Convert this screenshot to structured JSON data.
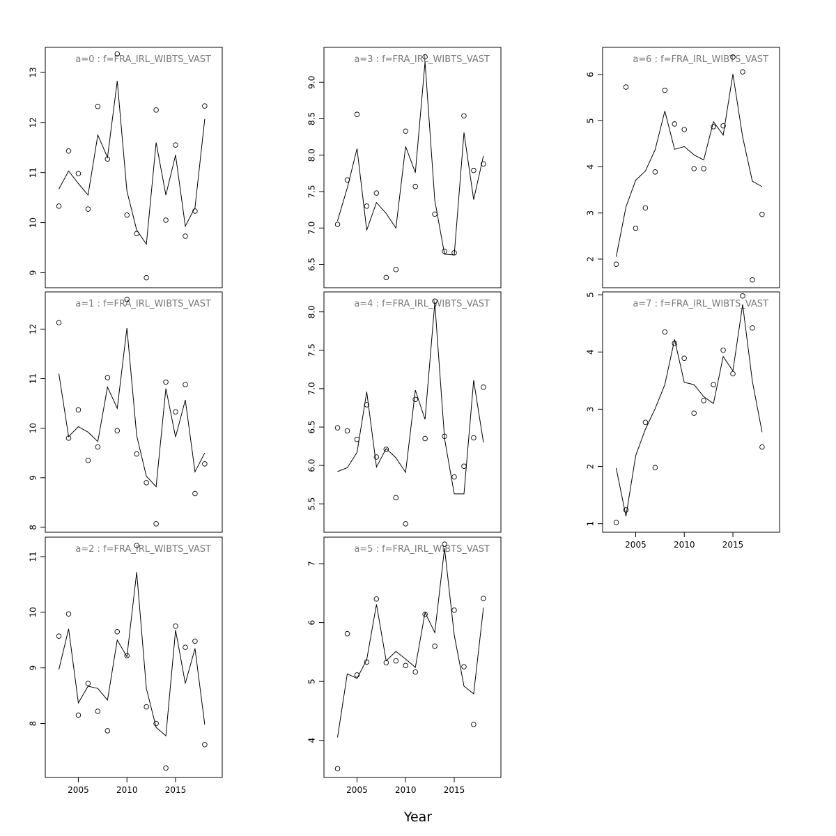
{
  "chart_data": {
    "type": "scatter",
    "xlabel": "Year",
    "years": [
      2003,
      2004,
      2005,
      2006,
      2007,
      2008,
      2009,
      2010,
      2011,
      2012,
      2013,
      2014,
      2015,
      2016,
      2017,
      2018
    ],
    "xlim": [
      2001.6,
      2019.8
    ],
    "x_ticks": [
      "2005",
      "2010",
      "2015"
    ],
    "panels": [
      {
        "title": "a=0 : f=FRA_IRL_WIBTS_VAST",
        "ylim": [
          8.7,
          13.5
        ],
        "y_ticks": [
          "9",
          "10",
          "11",
          "12",
          "13"
        ],
        "observed": [
          10.33,
          11.43,
          10.98,
          10.27,
          12.32,
          11.27,
          13.37,
          10.15,
          9.78,
          8.9,
          12.25,
          10.05,
          11.55,
          9.73,
          10.23,
          12.33
        ],
        "fitted": [
          10.67,
          11.03,
          10.78,
          10.55,
          11.75,
          11.3,
          12.83,
          10.63,
          9.85,
          9.57,
          11.6,
          10.55,
          11.35,
          9.93,
          10.3,
          12.07
        ]
      },
      {
        "title": "a=1 : f=FRA_IRL_WIBTS_VAST",
        "ylim": [
          7.9,
          12.75
        ],
        "y_ticks": [
          "8",
          "9",
          "10",
          "11",
          "12"
        ],
        "observed": [
          12.13,
          9.8,
          10.37,
          9.35,
          9.62,
          11.02,
          9.95,
          12.6,
          9.48,
          8.9,
          8.07,
          10.93,
          10.33,
          10.88,
          8.68,
          9.28
        ],
        "fitted": [
          11.1,
          9.83,
          10.03,
          9.92,
          9.73,
          10.83,
          10.4,
          12.02,
          9.85,
          9.03,
          8.82,
          10.8,
          9.82,
          10.57,
          9.12,
          9.5
        ]
      },
      {
        "title": "a=2 : f=FRA_IRL_WIBTS_VAST",
        "ylim": [
          7.03,
          11.35
        ],
        "y_ticks": [
          "8",
          "9",
          "10",
          "11"
        ],
        "observed": [
          9.57,
          9.97,
          8.15,
          8.72,
          8.22,
          7.87,
          9.65,
          9.22,
          11.2,
          8.3,
          8.0,
          7.2,
          9.75,
          9.37,
          9.48,
          7.62
        ],
        "fitted": [
          8.97,
          9.7,
          8.37,
          8.67,
          8.63,
          8.42,
          9.5,
          9.2,
          10.72,
          8.63,
          7.93,
          7.78,
          9.68,
          8.72,
          9.35,
          7.98
        ]
      },
      {
        "title": "a=3 : f=FRA_IRL_WIBTS_VAST",
        "ylim": [
          6.18,
          9.48
        ],
        "y_ticks": [
          "6.5",
          "7.0",
          "7.5",
          "8.0",
          "8.5",
          "9.0"
        ],
        "observed": [
          7.05,
          7.66,
          8.56,
          7.3,
          7.48,
          6.32,
          6.43,
          8.33,
          7.57,
          9.35,
          7.19,
          6.68,
          6.66,
          8.54,
          7.79,
          7.88
        ],
        "fitted": [
          7.1,
          7.55,
          8.09,
          6.97,
          7.35,
          7.2,
          7.0,
          8.12,
          7.76,
          9.28,
          7.38,
          6.64,
          6.63,
          8.31,
          7.39,
          7.99
        ]
      },
      {
        "title": "a=4 : f=FRA_IRL_WIBTS_VAST",
        "ylim": [
          5.13,
          8.26
        ],
        "y_ticks": [
          "5.5",
          "6.0",
          "6.5",
          "7.0",
          "7.5",
          "8.0"
        ],
        "observed": [
          6.49,
          6.45,
          6.34,
          6.79,
          6.11,
          6.21,
          5.58,
          5.24,
          6.86,
          6.35,
          8.14,
          6.38,
          5.85,
          5.99,
          6.36,
          7.02
        ],
        "fitted": [
          5.92,
          5.97,
          6.17,
          6.96,
          5.98,
          6.22,
          6.1,
          5.91,
          6.98,
          6.6,
          8.12,
          6.35,
          5.63,
          5.63,
          7.11,
          6.3
        ]
      },
      {
        "title": "a=5 : f=FRA_IRL_WIBTS_VAST",
        "ylim": [
          3.37,
          7.45
        ],
        "y_ticks": [
          "4",
          "5",
          "6",
          "7"
        ],
        "observed": [
          3.52,
          5.81,
          5.11,
          5.33,
          6.4,
          5.32,
          5.35,
          5.27,
          5.16,
          6.14,
          5.6,
          7.33,
          6.21,
          5.25,
          4.27,
          6.41
        ],
        "fitted": [
          4.05,
          5.13,
          5.05,
          5.37,
          6.31,
          5.35,
          5.51,
          5.38,
          5.24,
          6.17,
          5.83,
          7.26,
          5.79,
          4.92,
          4.79,
          6.25
        ]
      },
      {
        "title": "a=6 : f=FRA_IRL_WIBTS_VAST",
        "ylim": [
          1.38,
          6.59
        ],
        "y_ticks": [
          "2",
          "3",
          "4",
          "5",
          "6"
        ],
        "observed": [
          1.89,
          5.73,
          2.67,
          3.11,
          3.89,
          5.66,
          4.93,
          4.81,
          3.96,
          3.96,
          4.87,
          4.89,
          6.38,
          6.06,
          1.55,
          2.97
        ],
        "fitted": [
          2.05,
          3.13,
          3.71,
          3.91,
          4.37,
          5.21,
          4.38,
          4.44,
          4.26,
          4.15,
          4.98,
          4.69,
          6.01,
          4.65,
          3.69,
          3.57
        ]
      },
      {
        "title": "a=7 : f=FRA_IRL_WIBTS_VAST",
        "ylim": [
          0.85,
          5.05
        ],
        "y_ticks": [
          "1",
          "2",
          "3",
          "4",
          "5"
        ],
        "observed": [
          1.02,
          1.24,
          null,
          2.77,
          1.98,
          4.35,
          4.15,
          3.89,
          2.93,
          3.15,
          3.43,
          4.03,
          3.62,
          4.98,
          4.42,
          2.34
        ],
        "fitted": [
          1.97,
          1.13,
          2.19,
          2.65,
          3.01,
          3.43,
          4.22,
          3.47,
          3.43,
          3.22,
          3.1,
          3.92,
          3.67,
          4.83,
          3.49,
          2.6
        ]
      }
    ]
  }
}
